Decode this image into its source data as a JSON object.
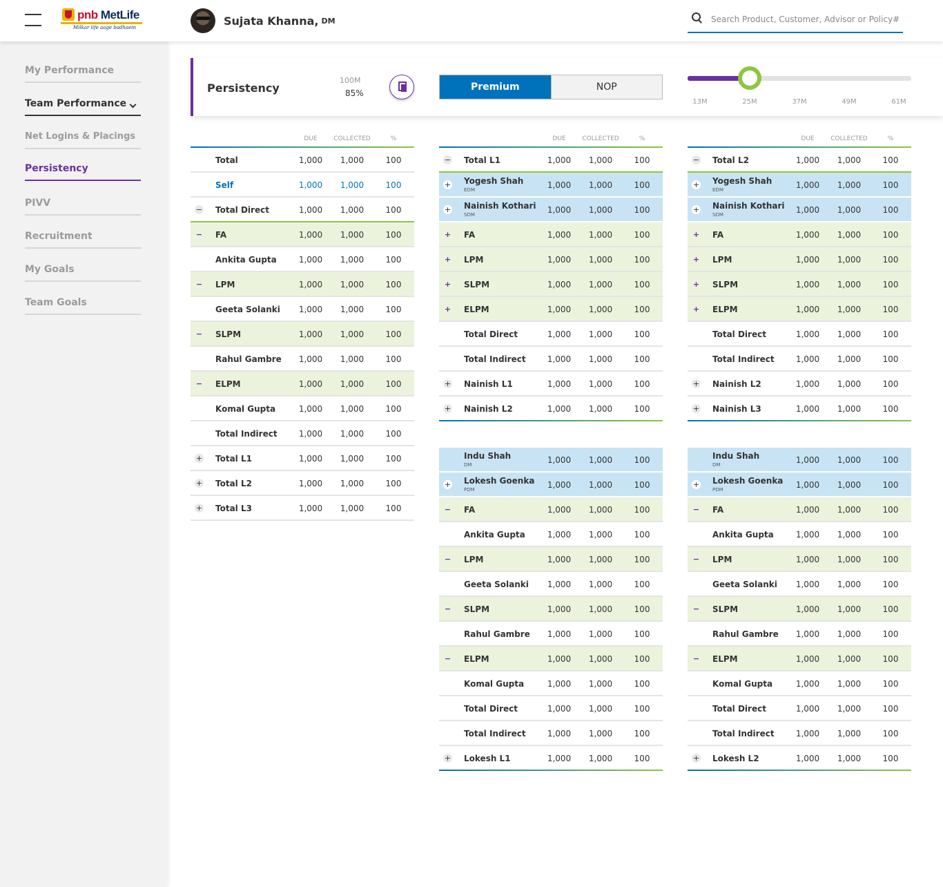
{
  "header": {
    "logo": {
      "pnb": "pnb",
      "metlife": "MetLife",
      "tagline": "Milkar life aage badhaein"
    },
    "user": {
      "name": "Sujata Khanna,",
      "role": "DM"
    },
    "search": {
      "placeholder": "Search Product, Customer, Advisor or Policy#"
    }
  },
  "sidebar": {
    "items": [
      {
        "label": "My Performance"
      },
      {
        "label": "Team Performance"
      },
      {
        "label": "Net Logins & Placings"
      },
      {
        "label": "Persistency"
      },
      {
        "label": "PIVV"
      },
      {
        "label": "Recruitment"
      },
      {
        "label": "My Goals"
      },
      {
        "label": "Team Goals"
      }
    ]
  },
  "panel": {
    "title": "Persistency",
    "value_top": "100M",
    "value_pct": "85%",
    "toggle": {
      "premium": "Premium",
      "nop": "NOP",
      "selected": "Premium"
    },
    "slider": {
      "ticks": [
        "13M",
        "25M",
        "37M",
        "49M",
        "61M"
      ],
      "selected": "25M"
    }
  },
  "colors": {
    "accent_purple": "#6b2fa0",
    "primary_blue": "#0072bc",
    "green": "#8dc63f",
    "row_green": "#ebf3dd",
    "row_blue": "#c8e4f4"
  },
  "columns": {
    "due": "DUE",
    "collected": "COLLECTED",
    "pct": "%"
  },
  "tables": {
    "left": [
      {
        "name": "Total",
        "due": "1,000",
        "col": "1,000",
        "pct": "100"
      },
      {
        "name": "Self",
        "due": "1,000",
        "col": "1,000",
        "pct": "100"
      },
      {
        "name": "Total Direct",
        "due": "1,000",
        "col": "1,000",
        "pct": "100"
      },
      {
        "name": "FA",
        "due": "1,000",
        "col": "1,000",
        "pct": "100"
      },
      {
        "name": "Ankita Gupta",
        "due": "1,000",
        "col": "1,000",
        "pct": "100"
      },
      {
        "name": "LPM",
        "due": "1,000",
        "col": "1,000",
        "pct": "100"
      },
      {
        "name": "Geeta Solanki",
        "due": "1,000",
        "col": "1,000",
        "pct": "100"
      },
      {
        "name": "SLPM",
        "due": "1,000",
        "col": "1,000",
        "pct": "100"
      },
      {
        "name": "Rahul Gambre",
        "due": "1,000",
        "col": "1,000",
        "pct": "100"
      },
      {
        "name": "ELPM",
        "due": "1,000",
        "col": "1,000",
        "pct": "100"
      },
      {
        "name": "Komal Gupta",
        "due": "1,000",
        "col": "1,000",
        "pct": "100"
      },
      {
        "name": "Total Indirect",
        "due": "1,000",
        "col": "1,000",
        "pct": "100"
      },
      {
        "name": "Total L1",
        "due": "1,000",
        "col": "1,000",
        "pct": "100"
      },
      {
        "name": "Total L2",
        "due": "1,000",
        "col": "1,000",
        "pct": "100"
      },
      {
        "name": "Total L3",
        "due": "1,000",
        "col": "1,000",
        "pct": "100"
      }
    ],
    "mid_top": [
      {
        "name": "Total L1",
        "due": "1,000",
        "col": "1,000",
        "pct": "100"
      },
      {
        "name": "Yogesh Shah",
        "sub": "EDM",
        "due": "1,000",
        "col": "1,000",
        "pct": "100"
      },
      {
        "name": "Nainish Kothari",
        "sub": "SDM",
        "due": "1,000",
        "col": "1,000",
        "pct": "100"
      },
      {
        "name": "FA",
        "due": "1,000",
        "col": "1,000",
        "pct": "100"
      },
      {
        "name": "LPM",
        "due": "1,000",
        "col": "1,000",
        "pct": "100"
      },
      {
        "name": "SLPM",
        "due": "1,000",
        "col": "1,000",
        "pct": "100"
      },
      {
        "name": "ELPM",
        "due": "1,000",
        "col": "1,000",
        "pct": "100"
      },
      {
        "name": "Total Direct",
        "due": "1,000",
        "col": "1,000",
        "pct": "100"
      },
      {
        "name": "Total Indirect",
        "due": "1,000",
        "col": "1,000",
        "pct": "100"
      },
      {
        "name": "Nainish L1",
        "due": "1,000",
        "col": "1,000",
        "pct": "100"
      },
      {
        "name": "Nainish L2",
        "due": "1,000",
        "col": "1,000",
        "pct": "100"
      }
    ],
    "right_top": [
      {
        "name": "Total L2",
        "due": "1,000",
        "col": "1,000",
        "pct": "100"
      },
      {
        "name": "Yogesh Shah",
        "sub": "EDM",
        "due": "1,000",
        "col": "1,000",
        "pct": "100"
      },
      {
        "name": "Nainish Kothari",
        "sub": "SDM",
        "due": "1,000",
        "col": "1,000",
        "pct": "100"
      },
      {
        "name": "FA",
        "due": "1,000",
        "col": "1,000",
        "pct": "100"
      },
      {
        "name": "LPM",
        "due": "1,000",
        "col": "1,000",
        "pct": "100"
      },
      {
        "name": "SLPM",
        "due": "1,000",
        "col": "1,000",
        "pct": "100"
      },
      {
        "name": "ELPM",
        "due": "1,000",
        "col": "1,000",
        "pct": "100"
      },
      {
        "name": "Total Direct",
        "due": "1,000",
        "col": "1,000",
        "pct": "100"
      },
      {
        "name": "Total Indirect",
        "due": "1,000",
        "col": "1,000",
        "pct": "100"
      },
      {
        "name": "Nainish L2",
        "due": "1,000",
        "col": "1,000",
        "pct": "100"
      },
      {
        "name": "Nainish L3",
        "due": "1,000",
        "col": "1,000",
        "pct": "100"
      }
    ],
    "mid_bottom": [
      {
        "name": "Indu Shah",
        "sub": "DM",
        "due": "1,000",
        "col": "1,000",
        "pct": "100"
      },
      {
        "name": "Lokesh Goenka",
        "sub": "PDM",
        "due": "1,000",
        "col": "1,000",
        "pct": "100"
      },
      {
        "name": "FA",
        "due": "1,000",
        "col": "1,000",
        "pct": "100"
      },
      {
        "name": "Ankita Gupta",
        "due": "1,000",
        "col": "1,000",
        "pct": "100"
      },
      {
        "name": "LPM",
        "due": "1,000",
        "col": "1,000",
        "pct": "100"
      },
      {
        "name": "Geeta Solanki",
        "due": "1,000",
        "col": "1,000",
        "pct": "100"
      },
      {
        "name": "SLPM",
        "due": "1,000",
        "col": "1,000",
        "pct": "100"
      },
      {
        "name": "Rahul Gambre",
        "due": "1,000",
        "col": "1,000",
        "pct": "100"
      },
      {
        "name": "ELPM",
        "due": "1,000",
        "col": "1,000",
        "pct": "100"
      },
      {
        "name": "Komal Gupta",
        "due": "1,000",
        "col": "1,000",
        "pct": "100"
      },
      {
        "name": "Total Direct",
        "due": "1,000",
        "col": "1,000",
        "pct": "100"
      },
      {
        "name": "Total Indirect",
        "due": "1,000",
        "col": "1,000",
        "pct": "100"
      },
      {
        "name": "Lokesh L1",
        "due": "1,000",
        "col": "1,000",
        "pct": "100"
      }
    ],
    "right_bottom": [
      {
        "name": "Indu Shah",
        "sub": "DM",
        "due": "1,000",
        "col": "1,000",
        "pct": "100"
      },
      {
        "name": "Lokesh Goenka",
        "sub": "PDM",
        "due": "1,000",
        "col": "1,000",
        "pct": "100"
      },
      {
        "name": "FA",
        "due": "1,000",
        "col": "1,000",
        "pct": "100"
      },
      {
        "name": "Ankita Gupta",
        "due": "1,000",
        "col": "1,000",
        "pct": "100"
      },
      {
        "name": "LPM",
        "due": "1,000",
        "col": "1,000",
        "pct": "100"
      },
      {
        "name": "Geeta Solanki",
        "due": "1,000",
        "col": "1,000",
        "pct": "100"
      },
      {
        "name": "SLPM",
        "due": "1,000",
        "col": "1,000",
        "pct": "100"
      },
      {
        "name": "Rahul Gambre",
        "due": "1,000",
        "col": "1,000",
        "pct": "100"
      },
      {
        "name": "ELPM",
        "due": "1,000",
        "col": "1,000",
        "pct": "100"
      },
      {
        "name": "Komal Gupta",
        "due": "1,000",
        "col": "1,000",
        "pct": "100"
      },
      {
        "name": "Total Direct",
        "due": "1,000",
        "col": "1,000",
        "pct": "100"
      },
      {
        "name": "Total Indirect",
        "due": "1,000",
        "col": "1,000",
        "pct": "100"
      },
      {
        "name": "Lokesh L2",
        "due": "1,000",
        "col": "1,000",
        "pct": "100"
      }
    ]
  }
}
